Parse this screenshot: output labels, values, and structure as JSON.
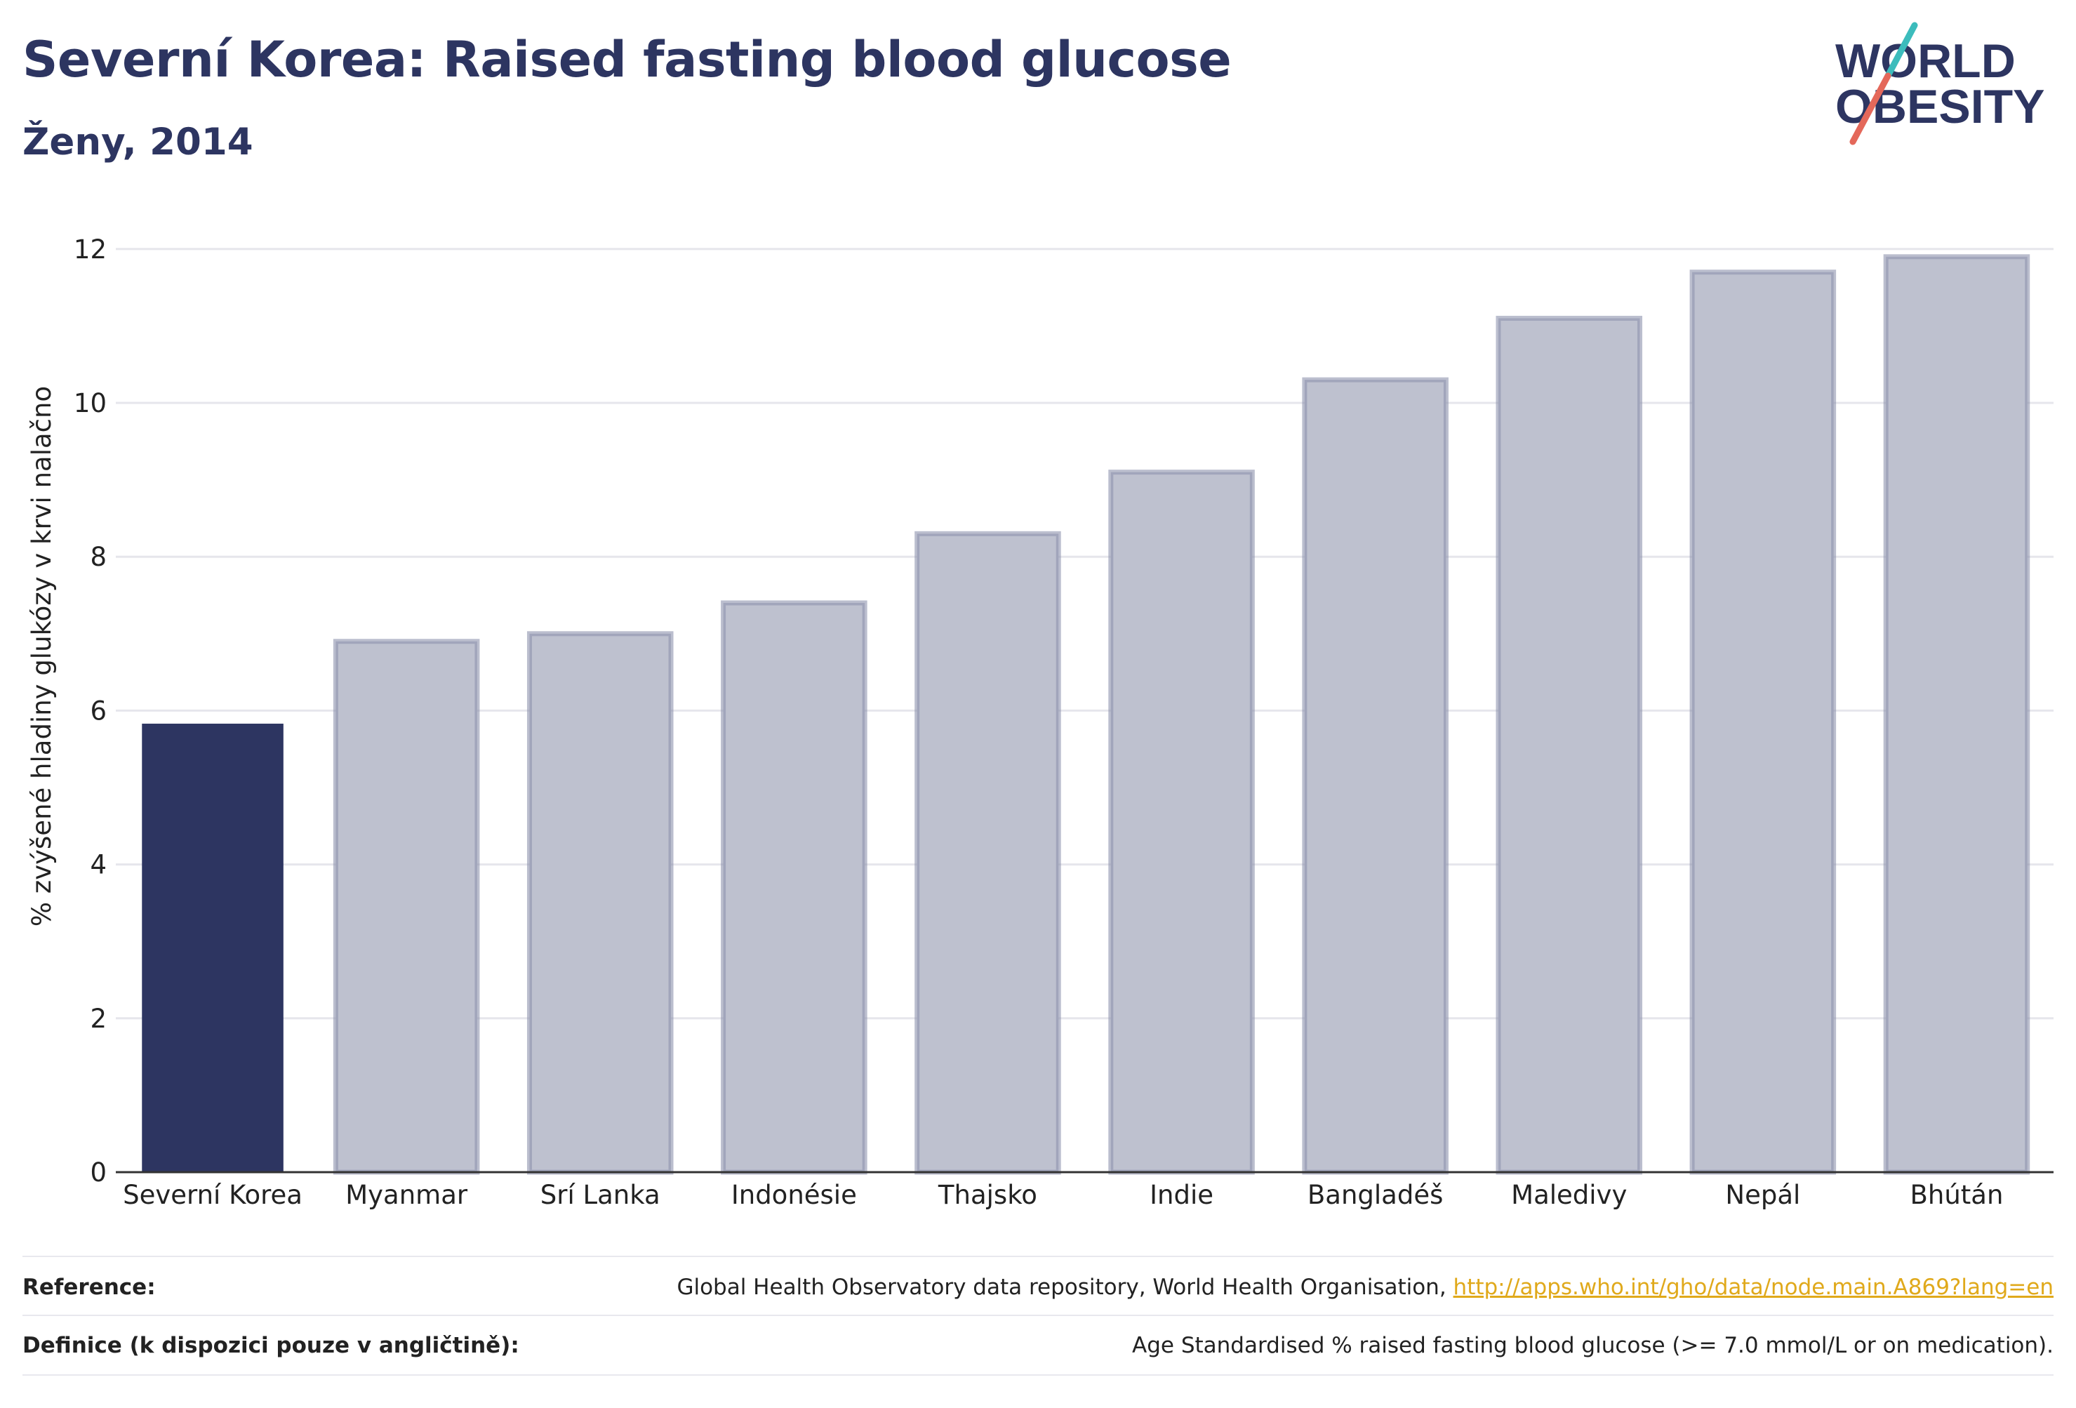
{
  "header": {
    "title": "Severní Korea: Raised fasting blood glucose",
    "subtitle": "Ženy, 2014"
  },
  "logo": {
    "line1": "WORLD",
    "line2": "OBESITY",
    "colors": {
      "text": "#2d3561",
      "slash_top": "#3cbcbc",
      "slash_bottom": "#e4685a"
    }
  },
  "chart_data": {
    "type": "bar",
    "title": "",
    "xlabel": "",
    "ylabel": "% zvýšené hladiny glukózy v krvi nalačno",
    "ylim": [
      0,
      12.5
    ],
    "yticks": [
      0,
      2,
      4,
      6,
      8,
      10,
      12
    ],
    "grid": true,
    "categories": [
      "Severní Korea",
      "Myanmar",
      "Srí Lanka",
      "Indonésie",
      "Thajsko",
      "Indie",
      "Bangladéš",
      "Maledivy",
      "Nepál",
      "Bhútán"
    ],
    "values": [
      5.83,
      6.9,
      7.0,
      7.4,
      8.3,
      9.1,
      10.3,
      11.1,
      11.7,
      11.9
    ],
    "highlight_index": 0,
    "colors": {
      "highlight": "#2d3561",
      "bar_fill": "#bec1cf",
      "bar_stroke": "#8d93ad",
      "grid": "#e6e6ec",
      "axis": "#333333"
    }
  },
  "footer": {
    "reference_label": "Reference:",
    "reference_text": "Global Health Observatory data repository, World Health Organisation, ",
    "reference_link": "http://apps.who.int/gho/data/node.main.A869?lang=en",
    "definition_label": "Definice (k dispozici pouze v angličtině):",
    "definition_text": "Age Standardised % raised fasting blood glucose (>= 7.0 mmol/L or on medication)."
  }
}
